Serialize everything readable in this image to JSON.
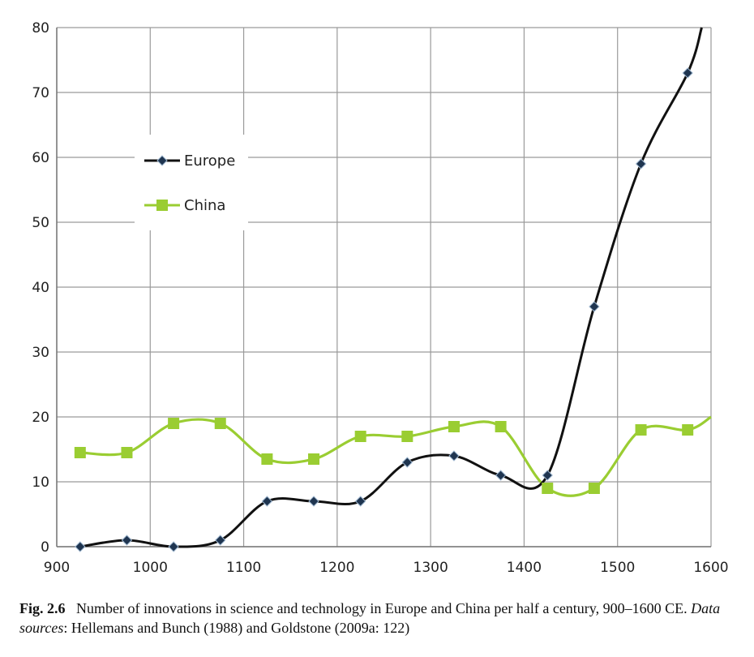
{
  "chart_data": {
    "type": "line",
    "xlim": [
      900,
      1600
    ],
    "ylim": [
      0,
      80
    ],
    "xticks": [
      900,
      1000,
      1100,
      1200,
      1300,
      1400,
      1500,
      1600
    ],
    "yticks": [
      0,
      10,
      20,
      30,
      40,
      50,
      60,
      70,
      80
    ],
    "grid": true,
    "legend_position": "upper-left",
    "series": [
      {
        "name": "Europe",
        "color": "#111111",
        "marker": "diamond",
        "x": [
          925,
          975,
          1025,
          1075,
          1125,
          1175,
          1225,
          1275,
          1325,
          1375,
          1425,
          1475,
          1525,
          1575,
          1590
        ],
        "y": [
          0,
          1,
          0,
          1,
          7,
          7,
          7,
          13,
          14,
          11,
          11,
          37,
          59,
          73,
          80
        ],
        "marked": [
          true,
          true,
          true,
          true,
          true,
          true,
          true,
          true,
          true,
          true,
          true,
          true,
          true,
          true,
          false
        ]
      },
      {
        "name": "China",
        "color": "#9ACD32",
        "marker": "square",
        "x": [
          925,
          975,
          1025,
          1075,
          1125,
          1175,
          1225,
          1275,
          1325,
          1375,
          1425,
          1475,
          1525,
          1575,
          1600
        ],
        "y": [
          14.5,
          14.5,
          19,
          19,
          13.5,
          13.5,
          17,
          17,
          18.5,
          18.5,
          9,
          9,
          18,
          18,
          20
        ],
        "marked": [
          true,
          true,
          true,
          true,
          true,
          true,
          true,
          true,
          true,
          true,
          true,
          true,
          true,
          true,
          false
        ]
      }
    ]
  },
  "caption": {
    "fig_label": "Fig. 2.6",
    "text1": "Number of innovations in science and technology in Europe and China per half a century, 900–1600 CE.",
    "sources_label": "Data sources",
    "sources_text": ": Hellemans and Bunch (1988) and Goldstone (2009a: 122)"
  }
}
